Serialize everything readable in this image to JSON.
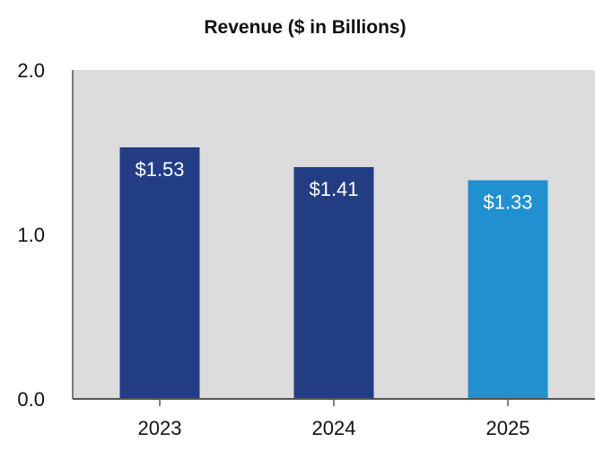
{
  "chart_data": {
    "type": "bar",
    "title": "Revenue ($ in Billions)",
    "categories": [
      "2023",
      "2024",
      "2025"
    ],
    "values": [
      1.53,
      1.41,
      1.33
    ],
    "data_labels": [
      "$1.53",
      "$1.41",
      "$1.33"
    ],
    "bar_colors": [
      "#233d85",
      "#233d85",
      "#2090d0"
    ],
    "yticks": [
      0.0,
      1.0,
      2.0
    ],
    "ytick_labels": [
      "0.0",
      "1.0",
      "2.0"
    ],
    "ylim": [
      0,
      2
    ],
    "xlabel": "",
    "ylabel": "",
    "grid": false,
    "legend": "none",
    "plot_background": "#dcdcdc",
    "axis_color": "#555555"
  }
}
